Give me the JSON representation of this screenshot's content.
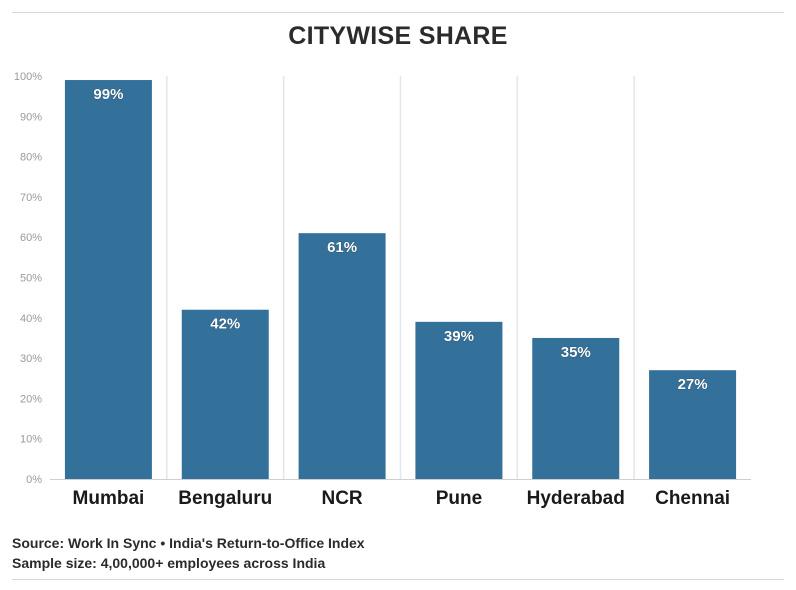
{
  "chart_data": {
    "type": "bar",
    "title": "CITYWISE SHARE",
    "categories": [
      "Mumbai",
      "Bengaluru",
      "NCR",
      "Pune",
      "Hyderabad",
      "Chennai"
    ],
    "values": [
      99,
      42,
      61,
      39,
      35,
      27
    ],
    "value_labels": [
      "99%",
      "42%",
      "61%",
      "39%",
      "35%",
      "27%"
    ],
    "ylim": [
      0,
      100
    ],
    "yticks": [
      0,
      10,
      20,
      30,
      40,
      50,
      60,
      70,
      80,
      90,
      100
    ],
    "ytick_labels": [
      "0%",
      "10%",
      "20%",
      "30%",
      "40%",
      "50%",
      "60%",
      "70%",
      "80%",
      "90%",
      "100%"
    ],
    "xlabel": "",
    "ylabel": "",
    "bar_color": "#33719b",
    "grid": "vertical"
  },
  "footer": {
    "source": "Source: Work In Sync • India's Return-to-Office Index",
    "sample": "Sample size: 4,00,000+ employees across India"
  }
}
